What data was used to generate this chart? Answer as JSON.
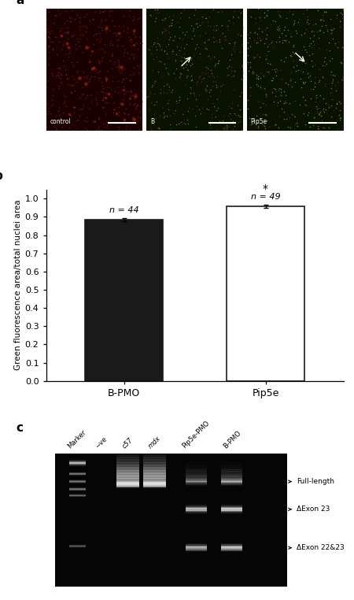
{
  "panel_b": {
    "categories": [
      "B-PMO",
      "Pip5e"
    ],
    "values": [
      0.885,
      0.958
    ],
    "errors": [
      0.008,
      0.01
    ],
    "bar_colors": [
      "#1a1a1a",
      "#ffffff"
    ],
    "bar_edge_colors": [
      "#1a1a1a",
      "#1a1a1a"
    ],
    "n_labels": [
      "n = 44",
      "n = 49"
    ],
    "significance": "*",
    "ylabel": "Green fluorescence area/total nuclei area",
    "ylim": [
      0.0,
      1.05
    ],
    "yticks": [
      0.0,
      0.1,
      0.2,
      0.3,
      0.4,
      0.5,
      0.6,
      0.7,
      0.8,
      0.9,
      1.0
    ],
    "panel_label": "b"
  },
  "panel_c": {
    "panel_label": "c",
    "lane_labels": [
      "Marker",
      "−ve",
      "c57",
      "mdx",
      "Pip5e-PMO",
      "B-PMO"
    ],
    "italic_labels": [
      "c57",
      "mdx"
    ],
    "band_labels": [
      "Full-length",
      "ΔExon 23",
      "ΔExon 22&23"
    ],
    "bg_color": "#050505"
  },
  "panel_a": {
    "panel_label": "a",
    "sub_labels": [
      "control",
      "B",
      "Pip5e"
    ]
  }
}
